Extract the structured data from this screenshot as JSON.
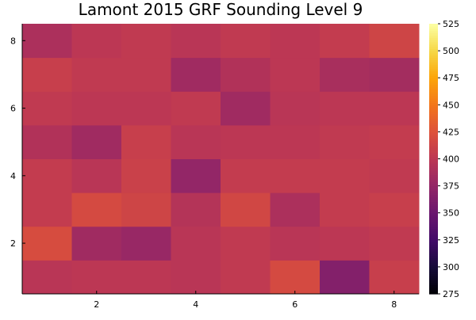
{
  "chart_data": {
    "type": "heatmap",
    "title": "Lamont 2015 GRF Sounding Level 9",
    "xlabel": "",
    "ylabel": "",
    "x": [
      1,
      2,
      3,
      4,
      5,
      6,
      7,
      8
    ],
    "y": [
      1,
      2,
      3,
      4,
      5,
      6,
      7,
      8
    ],
    "xlim": [
      0.5,
      8.5
    ],
    "ylim": [
      0.5,
      8.5
    ],
    "x_ticks": [
      2,
      4,
      6,
      8
    ],
    "y_ticks": [
      2,
      4,
      6,
      8
    ],
    "grid": false,
    "colormap": "inferno",
    "colorbar": {
      "range": [
        275,
        525
      ],
      "ticks": [
        275,
        300,
        325,
        350,
        375,
        400,
        425,
        450,
        475,
        500,
        525
      ],
      "placement": "right"
    },
    "z": [
      [
        398,
        400,
        400,
        398,
        403,
        418,
        365,
        408
      ],
      [
        420,
        383,
        378,
        398,
        403,
        398,
        400,
        403
      ],
      [
        405,
        418,
        413,
        395,
        415,
        390,
        405,
        408
      ],
      [
        405,
        398,
        410,
        375,
        405,
        405,
        405,
        403
      ],
      [
        393,
        383,
        408,
        398,
        400,
        400,
        403,
        405
      ],
      [
        403,
        400,
        400,
        403,
        383,
        398,
        400,
        400
      ],
      [
        408,
        403,
        403,
        383,
        393,
        400,
        388,
        385
      ],
      [
        390,
        400,
        403,
        398,
        403,
        400,
        405,
        413
      ]
    ]
  }
}
